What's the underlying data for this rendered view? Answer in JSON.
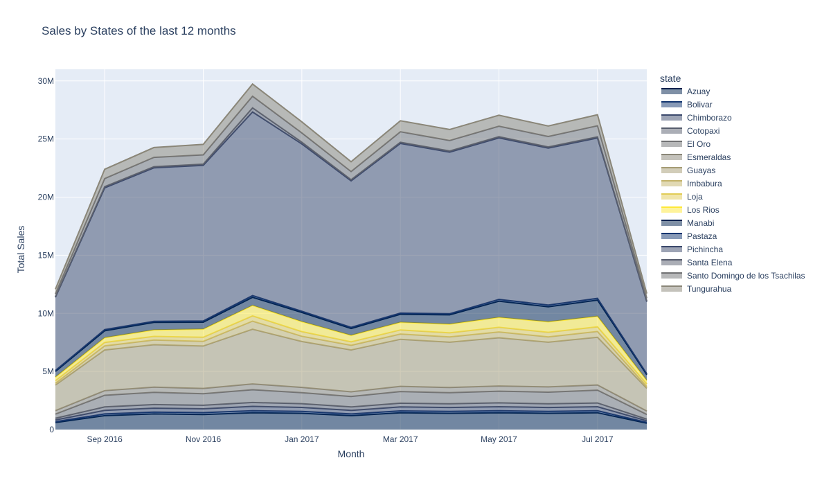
{
  "chart_data": {
    "type": "area",
    "stacked": true,
    "title": "Sales by States of the last 12 months",
    "xlabel": "Month",
    "ylabel": "Total Sales",
    "legend_title": "state",
    "legend_position": "right",
    "grid": true,
    "x": [
      "2016-08",
      "2016-09",
      "2016-10",
      "2016-11",
      "2016-12",
      "2017-01",
      "2017-02",
      "2017-03",
      "2017-04",
      "2017-05",
      "2017-06",
      "2017-07",
      "2017-08"
    ],
    "x_ticks": [
      {
        "month": "2016-09",
        "label": "Sep 2016"
      },
      {
        "month": "2016-11",
        "label": "Nov 2016"
      },
      {
        "month": "2017-01",
        "label": "Jan 2017"
      },
      {
        "month": "2017-03",
        "label": "Mar 2017"
      },
      {
        "month": "2017-05",
        "label": "May 2017"
      },
      {
        "month": "2017-07",
        "label": "Jul 2017"
      }
    ],
    "ylim": [
      0,
      31000000
    ],
    "y_ticks": [
      {
        "value": 0,
        "label": "0"
      },
      {
        "value": 5000000,
        "label": "5M"
      },
      {
        "value": 10000000,
        "label": "10M"
      },
      {
        "value": 15000000,
        "label": "15M"
      },
      {
        "value": 20000000,
        "label": "20M"
      },
      {
        "value": 25000000,
        "label": "25M"
      },
      {
        "value": 30000000,
        "label": "30M"
      }
    ],
    "series": [
      {
        "name": "Azuay",
        "color": "#00224e",
        "values": [
          600000,
          1200000,
          1350000,
          1300000,
          1450000,
          1400000,
          1200000,
          1450000,
          1400000,
          1450000,
          1400000,
          1450000,
          550000
        ]
      },
      {
        "name": "Bolivar",
        "color": "#123570",
        "values": [
          80000,
          150000,
          160000,
          160000,
          170000,
          160000,
          150000,
          160000,
          160000,
          170000,
          160000,
          170000,
          70000
        ]
      },
      {
        "name": "Chimborazo",
        "color": "#3b496c",
        "values": [
          150000,
          300000,
          330000,
          330000,
          380000,
          350000,
          300000,
          340000,
          340000,
          350000,
          340000,
          350000,
          140000
        ]
      },
      {
        "name": "Cotopaxi",
        "color": "#575d6d",
        "values": [
          150000,
          300000,
          310000,
          300000,
          330000,
          320000,
          300000,
          320000,
          320000,
          330000,
          320000,
          320000,
          140000
        ]
      },
      {
        "name": "El Oro",
        "color": "#707173",
        "values": [
          350000,
          1000000,
          1050000,
          1000000,
          1100000,
          950000,
          900000,
          1000000,
          950000,
          1000000,
          1000000,
          1100000,
          400000
        ]
      },
      {
        "name": "Esmeraldas",
        "color": "#8a8678",
        "values": [
          300000,
          400000,
          450000,
          450000,
          500000,
          450000,
          400000,
          450000,
          450000,
          450000,
          450000,
          450000,
          300000
        ]
      },
      {
        "name": "Guayas",
        "color": "#a59c74",
        "values": [
          2200000,
          3500000,
          3650000,
          3650000,
          4700000,
          3950000,
          3600000,
          4050000,
          3900000,
          4150000,
          3850000,
          4100000,
          1950000
        ]
      },
      {
        "name": "Imbabura",
        "color": "#c3b369",
        "values": [
          150000,
          350000,
          400000,
          400000,
          700000,
          450000,
          400000,
          450000,
          450000,
          500000,
          450000,
          500000,
          150000
        ]
      },
      {
        "name": "Loja",
        "color": "#e1cc55",
        "values": [
          220000,
          300000,
          320000,
          350000,
          450000,
          400000,
          300000,
          350000,
          350000,
          400000,
          400000,
          400000,
          220000
        ]
      },
      {
        "name": "Los Rios",
        "color": "#fee838",
        "values": [
          300000,
          400000,
          550000,
          700000,
          900000,
          850000,
          550000,
          650000,
          750000,
          850000,
          900000,
          900000,
          300000
        ]
      },
      {
        "name": "Manabi",
        "color": "#00224e",
        "values": [
          500000,
          600000,
          650000,
          600000,
          700000,
          800000,
          600000,
          700000,
          800000,
          1400000,
          1300000,
          1400000,
          500000
        ]
      },
      {
        "name": "Pastaza",
        "color": "#123570",
        "values": [
          80000,
          100000,
          100000,
          100000,
          150000,
          100000,
          100000,
          100000,
          100000,
          150000,
          150000,
          150000,
          80000
        ]
      },
      {
        "name": "Pichincha",
        "color": "#3b496c",
        "values": [
          6300000,
          12200000,
          13200000,
          13400000,
          15800000,
          14400000,
          12600000,
          14600000,
          13900000,
          13900000,
          13500000,
          13800000,
          6200000
        ]
      },
      {
        "name": "Santa Elena",
        "color": "#575d6d",
        "values": [
          50000,
          100000,
          100000,
          100000,
          350000,
          150000,
          100000,
          100000,
          100000,
          100000,
          100000,
          100000,
          50000
        ]
      },
      {
        "name": "Santo Domingo de los Tsachilas",
        "color": "#707173",
        "values": [
          250000,
          700000,
          800000,
          800000,
          1000000,
          800000,
          700000,
          900000,
          900000,
          900000,
          900000,
          950000,
          250000
        ]
      },
      {
        "name": "Tungurahua",
        "color": "#8a8678",
        "values": [
          400000,
          800000,
          850000,
          900000,
          1050000,
          950000,
          850000,
          950000,
          950000,
          950000,
          900000,
          950000,
          400000
        ]
      }
    ]
  }
}
